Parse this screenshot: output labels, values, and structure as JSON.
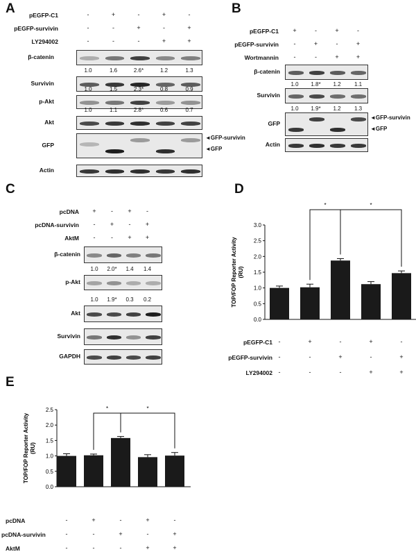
{
  "panels": {
    "A": {
      "label": "A",
      "conditions": [
        {
          "name": "pEGFP-C1",
          "signs": [
            "-",
            "+",
            "-",
            "+",
            "-"
          ]
        },
        {
          "name": "pEGFP-survivin",
          "signs": [
            "-",
            "-",
            "+",
            "-",
            "+"
          ]
        },
        {
          "name": "LY294002",
          "signs": [
            "-",
            "-",
            "-",
            "+",
            "+"
          ]
        }
      ],
      "rows": [
        {
          "name": "β-catenin",
          "quant": [
            "1.0",
            "1.6",
            "2.6*",
            "1.2",
            "1.3"
          ]
        },
        {
          "name": "Survivin",
          "quant": [
            "1.0",
            "1.5",
            "2.3*",
            "0.8",
            "0.9"
          ]
        },
        {
          "name": "p-Akt",
          "quant": [
            "1.0",
            "1.1",
            "2.8*",
            "0.6",
            "0.7"
          ]
        },
        {
          "name": "Akt",
          "quant": []
        },
        {
          "name": "GFP",
          "quant": []
        },
        {
          "name": "Actin",
          "quant": []
        }
      ],
      "arrows": [
        "GFP-survivin",
        "GFP"
      ]
    },
    "B": {
      "label": "B",
      "conditions": [
        {
          "name": "pEGFP-C1",
          "signs": [
            "+",
            "-",
            "+",
            "-"
          ]
        },
        {
          "name": "pEGFP-survivin",
          "signs": [
            "-",
            "+",
            "-",
            "+"
          ]
        },
        {
          "name": "Wortmannin",
          "signs": [
            "-",
            "-",
            "+",
            "+"
          ]
        }
      ],
      "rows": [
        {
          "name": "β-catenin",
          "quant": [
            "1.0",
            "1.8*",
            "1.2",
            "1.1"
          ]
        },
        {
          "name": "Survivin",
          "quant": [
            "1.0",
            "1.9*",
            "1.2",
            "1.3"
          ]
        },
        {
          "name": "GFP",
          "quant": []
        },
        {
          "name": "Actin",
          "quant": []
        }
      ],
      "arrows": [
        "GFP-survivin",
        "GFP"
      ]
    },
    "C": {
      "label": "C",
      "conditions": [
        {
          "name": "pcDNA",
          "signs": [
            "+",
            "-",
            "+",
            "-"
          ]
        },
        {
          "name": "pcDNA-survivin",
          "signs": [
            "-",
            "+",
            "-",
            "+"
          ]
        },
        {
          "name": "AktM",
          "signs": [
            "-",
            "-",
            "+",
            "+"
          ]
        }
      ],
      "rows": [
        {
          "name": "β-catenin",
          "quant": [
            "1.0",
            "2.0*",
            "1.4",
            "1.4"
          ]
        },
        {
          "name": "p-Akt",
          "quant": [
            "1.0",
            "1.9*",
            "0.3",
            "0.2"
          ]
        },
        {
          "name": "Akt",
          "quant": []
        },
        {
          "name": "Survivin",
          "quant": []
        },
        {
          "name": "GAPDH",
          "quant": []
        }
      ]
    },
    "D": {
      "label": "D",
      "conditions": [
        {
          "name": "pEGFP-C1",
          "signs": [
            "-",
            "+",
            "-",
            "+",
            "-"
          ]
        },
        {
          "name": "pEGFP-survivin",
          "signs": [
            "-",
            "-",
            "+",
            "-",
            "+"
          ]
        },
        {
          "name": "LY294002",
          "signs": [
            "-",
            "-",
            "-",
            "+",
            "+"
          ]
        }
      ]
    },
    "E": {
      "label": "E",
      "conditions": [
        {
          "name": "pcDNA",
          "signs": [
            "-",
            "+",
            "-",
            "+",
            "-"
          ]
        },
        {
          "name": "pcDNA-survivin",
          "signs": [
            "-",
            "-",
            "+",
            "-",
            "+"
          ]
        },
        {
          "name": "AktM",
          "signs": [
            "-",
            "-",
            "-",
            "+",
            "+"
          ]
        }
      ]
    }
  },
  "chart_data": [
    {
      "panel": "D",
      "type": "bar",
      "ylabel": "TOP/FOP Reporter Activity (RU)",
      "ylim": [
        0,
        3.0
      ],
      "yticks": [
        "0.0",
        "0.5",
        "1.0",
        "1.5",
        "2.0",
        "2.5",
        "3.0"
      ],
      "values": [
        1.0,
        1.02,
        1.87,
        1.12,
        1.47
      ],
      "errors": [
        0.06,
        0.1,
        0.06,
        0.08,
        0.07
      ],
      "significance": [
        "*",
        "*"
      ]
    },
    {
      "panel": "E",
      "type": "bar",
      "ylabel": "TOP/FOP Reporter Activity (RU)",
      "ylim": [
        0,
        2.5
      ],
      "yticks": [
        "0.0",
        "0.5",
        "1.0",
        "1.5",
        "2.0",
        "2.5"
      ],
      "values": [
        1.0,
        1.02,
        1.58,
        0.96,
        1.01
      ],
      "errors": [
        0.07,
        0.04,
        0.05,
        0.08,
        0.1
      ],
      "significance": [
        "*",
        "*"
      ]
    }
  ]
}
